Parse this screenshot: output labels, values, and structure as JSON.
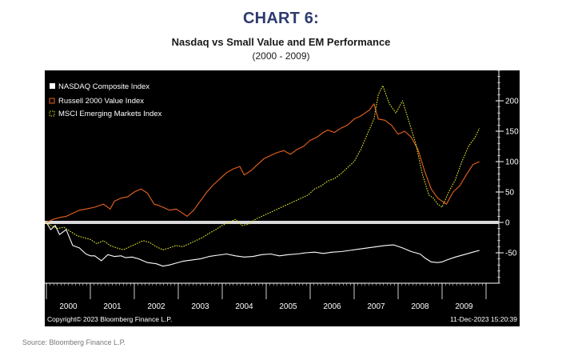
{
  "header": {
    "chart_number": "CHART 6:",
    "title": "Nasdaq vs Small Value and EM Performance",
    "subtitle": "(2000 - 2009)"
  },
  "footer": {
    "copyright": "Copyright© 2023 Bloomberg Finance L.P.",
    "timestamp": "11-Dec-2023 15:20:39",
    "source": "Source: Bloomberg Finance L.P."
  },
  "colors": {
    "panel_bg": "#000000",
    "axis": "#ffffff",
    "zero_line": "#d9d9d9",
    "nasdaq": "#ffffff",
    "russell": "#e8631f",
    "msci": "#e6e62e"
  },
  "chart_data": {
    "type": "line",
    "title": "Nasdaq vs Small Value and EM Performance",
    "subtitle": "(2000 - 2009)",
    "xlabel": "",
    "ylabel": "",
    "x_tick_labels": [
      "2000",
      "2001",
      "2002",
      "2003",
      "2004",
      "2005",
      "2006",
      "2007",
      "2008",
      "2009"
    ],
    "xlim": [
      2000.0,
      2010.0
    ],
    "ylim": [
      -100,
      250
    ],
    "y_ticks": [
      -50,
      0,
      50,
      100,
      150,
      200
    ],
    "y_tick_labels": [
      "-50",
      "0",
      "50",
      "100",
      "150",
      "200"
    ],
    "grid": false,
    "reference_line": 0,
    "legend_position": "top-left",
    "series": [
      {
        "name": "NASDAQ Composite Index",
        "color": "#ffffff",
        "x": [
          2000.0,
          2000.1,
          2000.2,
          2000.3,
          2000.45,
          2000.6,
          2000.75,
          2000.9,
          2001.0,
          2001.1,
          2001.25,
          2001.4,
          2001.55,
          2001.7,
          2001.8,
          2001.95,
          2002.1,
          2002.3,
          2002.5,
          2002.65,
          2002.8,
          2002.95,
          2003.1,
          2003.3,
          2003.5,
          2003.7,
          2003.9,
          2004.1,
          2004.3,
          2004.5,
          2004.7,
          2004.9,
          2005.1,
          2005.3,
          2005.5,
          2005.7,
          2005.9,
          2006.1,
          2006.3,
          2006.5,
          2006.7,
          2006.9,
          2007.1,
          2007.3,
          2007.5,
          2007.7,
          2007.9,
          2008.1,
          2008.3,
          2008.5,
          2008.6,
          2008.75,
          2008.9,
          2009.0,
          2009.1,
          2009.3,
          2009.5,
          2009.7,
          2009.85
        ],
        "values": [
          0,
          -12,
          -5,
          -20,
          -12,
          -38,
          -42,
          -52,
          -55,
          -55,
          -63,
          -53,
          -56,
          -55,
          -58,
          -57,
          -60,
          -66,
          -68,
          -72,
          -70,
          -67,
          -64,
          -62,
          -60,
          -56,
          -54,
          -52,
          -55,
          -57,
          -56,
          -53,
          -52,
          -55,
          -53,
          -52,
          -50,
          -49,
          -51,
          -49,
          -48,
          -46,
          -44,
          -42,
          -40,
          -38,
          -37,
          -42,
          -48,
          -52,
          -58,
          -65,
          -66,
          -65,
          -62,
          -57,
          -53,
          -49,
          -46
        ]
      },
      {
        "name": "Russell 2000 Value Index",
        "color": "#e8631f",
        "x": [
          2000.0,
          2000.15,
          2000.3,
          2000.45,
          2000.6,
          2000.75,
          2000.9,
          2001.1,
          2001.3,
          2001.45,
          2001.55,
          2001.7,
          2001.85,
          2002.0,
          2002.15,
          2002.3,
          2002.45,
          2002.55,
          2002.65,
          2002.8,
          2002.95,
          2003.1,
          2003.2,
          2003.35,
          2003.5,
          2003.65,
          2003.8,
          2003.95,
          2004.1,
          2004.25,
          2004.4,
          2004.5,
          2004.65,
          2004.8,
          2004.95,
          2005.1,
          2005.25,
          2005.4,
          2005.55,
          2005.7,
          2005.85,
          2006.0,
          2006.15,
          2006.3,
          2006.4,
          2006.55,
          2006.7,
          2006.85,
          2007.0,
          2007.15,
          2007.25,
          2007.35,
          2007.45,
          2007.55,
          2007.7,
          2007.85,
          2008.0,
          2008.15,
          2008.3,
          2008.45,
          2008.6,
          2008.75,
          2008.9,
          2009.0,
          2009.1,
          2009.25,
          2009.4,
          2009.55,
          2009.7,
          2009.85
        ],
        "values": [
          0,
          5,
          8,
          10,
          15,
          20,
          22,
          25,
          30,
          22,
          35,
          40,
          42,
          50,
          55,
          48,
          30,
          28,
          25,
          20,
          22,
          15,
          10,
          20,
          35,
          50,
          62,
          72,
          82,
          88,
          92,
          78,
          85,
          95,
          105,
          110,
          115,
          118,
          112,
          120,
          125,
          135,
          140,
          148,
          152,
          148,
          155,
          160,
          170,
          175,
          180,
          185,
          195,
          170,
          168,
          160,
          145,
          150,
          140,
          120,
          85,
          55,
          40,
          35,
          30,
          50,
          60,
          78,
          95,
          100
        ]
      },
      {
        "name": "MSCI Emerging Markets Index",
        "color": "#e6e62e",
        "x": [
          2000.0,
          2000.1,
          2000.25,
          2000.4,
          2000.55,
          2000.7,
          2000.85,
          2001.0,
          2001.15,
          2001.3,
          2001.45,
          2001.6,
          2001.75,
          2001.9,
          2002.05,
          2002.2,
          2002.35,
          2002.5,
          2002.65,
          2002.8,
          2002.95,
          2003.1,
          2003.25,
          2003.4,
          2003.55,
          2003.7,
          2003.85,
          2004.0,
          2004.15,
          2004.3,
          2004.45,
          2004.6,
          2004.75,
          2004.9,
          2005.05,
          2005.2,
          2005.35,
          2005.5,
          2005.65,
          2005.8,
          2005.95,
          2006.1,
          2006.25,
          2006.4,
          2006.55,
          2006.7,
          2006.85,
          2007.0,
          2007.15,
          2007.3,
          2007.45,
          2007.55,
          2007.65,
          2007.8,
          2007.95,
          2008.1,
          2008.25,
          2008.4,
          2008.55,
          2008.7,
          2008.8,
          2008.9,
          2009.0,
          2009.15,
          2009.3,
          2009.45,
          2009.6,
          2009.75,
          2009.85
        ],
        "values": [
          0,
          -5,
          -10,
          -8,
          -15,
          -22,
          -25,
          -28,
          -35,
          -30,
          -38,
          -42,
          -45,
          -40,
          -35,
          -30,
          -33,
          -40,
          -45,
          -42,
          -38,
          -40,
          -35,
          -30,
          -25,
          -18,
          -12,
          -5,
          0,
          5,
          -5,
          -3,
          5,
          10,
          15,
          20,
          25,
          30,
          35,
          40,
          45,
          55,
          60,
          68,
          72,
          80,
          90,
          100,
          120,
          145,
          170,
          210,
          225,
          195,
          180,
          200,
          165,
          130,
          80,
          45,
          40,
          30,
          25,
          50,
          70,
          100,
          125,
          140,
          155
        ]
      }
    ]
  }
}
